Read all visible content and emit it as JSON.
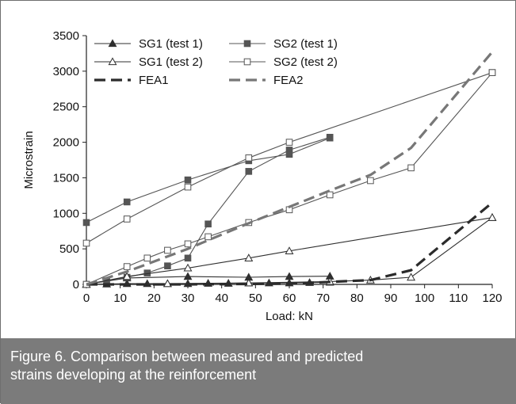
{
  "chart_data": {
    "type": "line",
    "xlabel": "Load: kN",
    "ylabel": "Microstrain",
    "xlim": [
      0,
      120
    ],
    "ylim": [
      0,
      3500
    ],
    "x_ticks": [
      0,
      10,
      20,
      30,
      40,
      50,
      60,
      70,
      80,
      90,
      100,
      110,
      120
    ],
    "y_ticks": [
      0,
      500,
      1000,
      1500,
      2000,
      2500,
      3000,
      3500
    ],
    "grid": false,
    "legend_position": "top-left, inside plot, 2 columns",
    "series": [
      {
        "name": "SG1 (test 1)",
        "marker": "triangle-filled",
        "line": "solid-thin",
        "color": "#2f2f2f",
        "x": [
          0,
          12,
          30,
          48,
          60,
          72
        ],
        "y": [
          0,
          90,
          110,
          100,
          110,
          115
        ],
        "x_aux": [
          0,
          6,
          12,
          18,
          24,
          30,
          36,
          42,
          48,
          54,
          60,
          66,
          72
        ],
        "y_aux": [
          0,
          5,
          10,
          10,
          10,
          10,
          15,
          15,
          20,
          20,
          20,
          25,
          30
        ]
      },
      {
        "name": "SG2 (test 1)",
        "marker": "square-filled",
        "line": "solid-thin",
        "color": "#555555",
        "x": [
          0,
          12,
          30,
          48,
          60,
          72
        ],
        "y": [
          870,
          1160,
          1470,
          1740,
          1830,
          2060
        ],
        "x_aux": [
          0,
          6,
          12,
          18,
          24,
          30,
          36,
          48,
          60,
          72
        ],
        "y_aux": [
          0,
          50,
          100,
          160,
          260,
          370,
          850,
          1590,
          1890,
          2070
        ]
      },
      {
        "name": "SG1 (test 2)",
        "marker": "triangle-open",
        "line": "solid-thin",
        "color": "#2f2f2f",
        "x": [
          0,
          12,
          30,
          48,
          60,
          120
        ],
        "y": [
          0,
          110,
          230,
          370,
          470,
          940
        ],
        "x_aux": [
          0,
          24,
          48,
          72,
          84,
          96,
          120
        ],
        "y_aux": [
          0,
          10,
          20,
          40,
          60,
          100,
          940
        ]
      },
      {
        "name": "SG2 (test 2)",
        "marker": "square-open",
        "line": "solid-thin",
        "color": "#555555",
        "x": [
          0,
          12,
          30,
          48,
          60,
          120
        ],
        "y": [
          580,
          920,
          1370,
          1780,
          2000,
          2980
        ],
        "x_aux": [
          0,
          12,
          18,
          24,
          30,
          36,
          48,
          60,
          72,
          84,
          96,
          120
        ],
        "y_aux": [
          0,
          250,
          370,
          480,
          570,
          670,
          870,
          1050,
          1260,
          1460,
          1640,
          2980
        ]
      },
      {
        "name": "FEA1",
        "marker": "none",
        "line": "dashed-thick",
        "color": "#2b2b2b",
        "x": [
          0,
          30,
          60,
          84,
          96,
          120
        ],
        "y": [
          0,
          0,
          10,
          60,
          200,
          1150
        ]
      },
      {
        "name": "FEA2",
        "marker": "none",
        "line": "dashed-thick",
        "color": "#777777",
        "x": [
          0,
          12,
          30,
          48,
          72,
          84,
          96,
          120
        ],
        "y": [
          0,
          180,
          500,
          860,
          1320,
          1540,
          1920,
          3270
        ]
      }
    ]
  },
  "caption": {
    "line1": "Figure 6. Comparison between measured and predicted",
    "line2": "strains developing at the reinforcement"
  }
}
